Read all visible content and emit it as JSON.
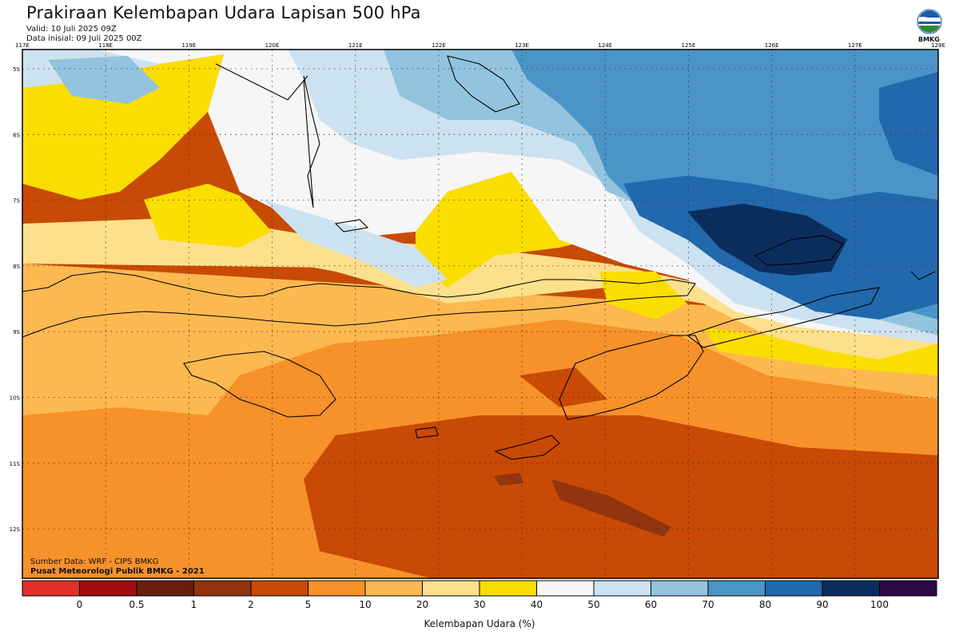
{
  "header": {
    "title": "Prakiraan Kelembapan Udara Lapisan 500 hPa",
    "valid": "Valid: 10 Juli 2025 09Z",
    "init": "Data inisial: 09 Juli 2025 00Z",
    "logo_text": "BMKG"
  },
  "map": {
    "lon_ticks": [
      "117E",
      "118E",
      "119E",
      "120E",
      "121E",
      "122E",
      "123E",
      "124E",
      "125E",
      "126E",
      "127E",
      "128E"
    ],
    "lat_ticks": [
      "5S",
      "6S",
      "7S",
      "8S",
      "9S",
      "10S",
      "11S",
      "12S"
    ],
    "gridlines": true,
    "gridline_style": "dotted"
  },
  "credits": {
    "source": "Sumber Data: WRF - CIPS BMKG",
    "org": "Pusat Meteorologi Publik BMKG - 2021"
  },
  "colorbar": {
    "title": "Kelembapan Udara (%)",
    "colors": [
      "#e0302a",
      "#a00d10",
      "#6a1e0e",
      "#923410",
      "#c84a04",
      "#f7912a",
      "#fdb850",
      "#fde08c",
      "#fade00",
      "#f6f6f6",
      "#cde2f0",
      "#92c4df",
      "#4a94c8",
      "#2168ac",
      "#0b2d5e",
      "#2c0a44"
    ],
    "labels": [
      "0",
      "0.5",
      "1",
      "2",
      "5",
      "10",
      "20",
      "30",
      "40",
      "50",
      "60",
      "70",
      "80",
      "90",
      "100"
    ]
  },
  "colors": {
    "coast": "#000000",
    "grid": "#333333"
  }
}
